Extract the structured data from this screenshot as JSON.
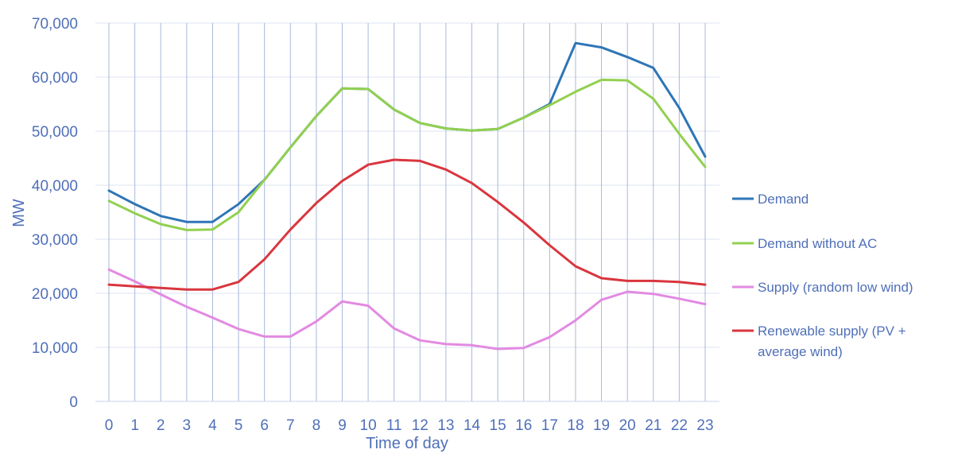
{
  "chart_data": {
    "type": "line",
    "title": "",
    "xlabel": "Time of day",
    "ylabel": "MW",
    "ylim": [
      0,
      70000
    ],
    "yticks": [
      "0",
      "10,000",
      "20,000",
      "30,000",
      "40,000",
      "50,000",
      "60,000",
      "70,000"
    ],
    "categories": [
      "0",
      "1",
      "2",
      "3",
      "4",
      "5",
      "6",
      "7",
      "8",
      "9",
      "10",
      "11",
      "12",
      "13",
      "14",
      "15",
      "16",
      "17",
      "18",
      "19",
      "20",
      "21",
      "22",
      "23"
    ],
    "grid": "vertical and horizontal",
    "legend_position": "right",
    "series": [
      {
        "name": "Demand",
        "legend_lines": [
          "Demand"
        ],
        "color": "#2e75b6",
        "values": [
          39000,
          36500,
          34300,
          33200,
          33200,
          36500,
          41000,
          47000,
          52800,
          57900,
          57800,
          54000,
          51500,
          50500,
          50100,
          50400,
          52500,
          55000,
          66300,
          65500,
          63700,
          61700,
          54300,
          45300
        ]
      },
      {
        "name": "Demand without AC",
        "legend_lines": [
          "Demand without AC"
        ],
        "color": "#92d050",
        "values": [
          37100,
          34800,
          32800,
          31700,
          31800,
          35000,
          41000,
          47000,
          52800,
          57900,
          57800,
          54000,
          51500,
          50500,
          50100,
          50400,
          52500,
          54800,
          57300,
          59500,
          59400,
          56000,
          49500,
          43400
        ]
      },
      {
        "name": "Supply (random low wind)",
        "legend_lines": [
          "Supply (random low wind)"
        ],
        "color": "#e28ae2",
        "values": [
          24400,
          22200,
          19800,
          17500,
          15500,
          13400,
          12000,
          12000,
          14800,
          18500,
          17700,
          13500,
          11300,
          10600,
          10400,
          9700,
          9900,
          11900,
          15000,
          18800,
          20300,
          19900,
          19000,
          18000
        ]
      },
      {
        "name": "Renewable supply (PV + average wind)",
        "legend_lines": [
          "Renewable supply (PV +",
          "average wind)"
        ],
        "color": "#d9363e",
        "values": [
          21600,
          21300,
          21000,
          20700,
          20700,
          22100,
          26300,
          31800,
          36700,
          40800,
          43800,
          44700,
          44500,
          42900,
          40400,
          36900,
          33100,
          28900,
          25000,
          22800,
          22300,
          22300,
          22100,
          21600
        ]
      }
    ]
  }
}
